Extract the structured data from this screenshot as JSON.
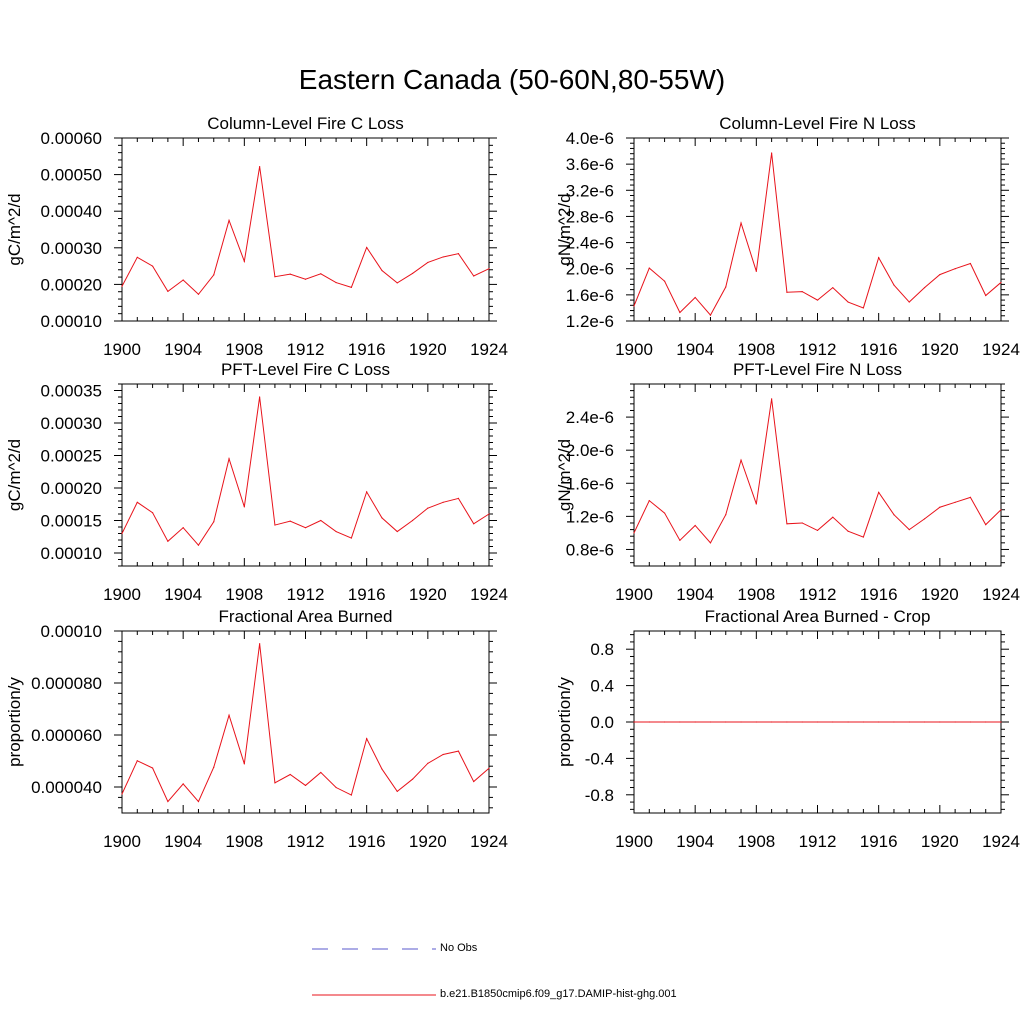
{
  "title": "Eastern Canada (50-60N,80-55W)",
  "line_color": "#e8131b",
  "nobs_color": "#5a5acd",
  "legend": {
    "no_obs": "No Obs",
    "run": "b.e21.B1850cmip6.f09_g17.DAMIP-hist-ghg.001"
  },
  "chart_data": [
    {
      "type": "line",
      "title": "Column-Level Fire C Loss",
      "ylabel": "gC/m^2/d",
      "xlim": [
        1900,
        1924
      ],
      "ylim": [
        0.0001,
        0.0006
      ],
      "xticks": [
        1900,
        1904,
        1908,
        1912,
        1916,
        1920,
        1924
      ],
      "yticks": [
        0.0001,
        0.0002,
        0.0003,
        0.0004,
        0.0005,
        0.0006
      ],
      "ytick_labels": [
        "0.00010",
        "0.00020",
        "0.00030",
        "0.00040",
        "0.00050",
        "0.00060"
      ],
      "x": [
        1900,
        1901,
        1902,
        1903,
        1904,
        1905,
        1906,
        1907,
        1908,
        1909,
        1910,
        1911,
        1912,
        1913,
        1914,
        1915,
        1916,
        1917,
        1918,
        1919,
        1920,
        1921,
        1922,
        1923,
        1924
      ],
      "values": [
        0.000195,
        0.000274,
        0.00025,
        0.000181,
        0.000212,
        0.000173,
        0.000226,
        0.000375,
        0.000263,
        0.000522,
        0.000221,
        0.000228,
        0.000214,
        0.000229,
        0.000205,
        0.000192,
        0.000301,
        0.000238,
        0.000204,
        0.00023,
        0.00026,
        0.000275,
        0.000284,
        0.000223,
        0.000243
      ]
    },
    {
      "type": "line",
      "title": "Column-Level Fire N Loss",
      "ylabel": "gN/m^2/d",
      "xlim": [
        1900,
        1924
      ],
      "ylim": [
        1.2e-06,
        4e-06
      ],
      "xticks": [
        1900,
        1904,
        1908,
        1912,
        1916,
        1920,
        1924
      ],
      "yticks": [
        1.2e-06,
        1.6e-06,
        2e-06,
        2.4e-06,
        2.8e-06,
        3.2e-06,
        3.6e-06,
        4e-06
      ],
      "ytick_labels": [
        "1.2e-6",
        "1.6e-6",
        "2.0e-6",
        "2.4e-6",
        "2.8e-6",
        "3.2e-6",
        "3.6e-6",
        "4.0e-6"
      ],
      "x": [
        1900,
        1901,
        1902,
        1903,
        1904,
        1905,
        1906,
        1907,
        1908,
        1909,
        1910,
        1911,
        1912,
        1913,
        1914,
        1915,
        1916,
        1917,
        1918,
        1919,
        1920,
        1921,
        1922,
        1923,
        1924
      ],
      "values": [
        1.43e-06,
        2.01e-06,
        1.81e-06,
        1.33e-06,
        1.56e-06,
        1.29e-06,
        1.72e-06,
        2.7e-06,
        1.96e-06,
        3.77e-06,
        1.64e-06,
        1.65e-06,
        1.52e-06,
        1.71e-06,
        1.49e-06,
        1.4e-06,
        2.17e-06,
        1.75e-06,
        1.49e-06,
        1.71e-06,
        1.91e-06,
        2e-06,
        2.08e-06,
        1.59e-06,
        1.79e-06
      ]
    },
    {
      "type": "line",
      "title": "PFT-Level Fire C Loss",
      "ylabel": "gC/m^2/d",
      "xlim": [
        1900,
        1924
      ],
      "ylim": [
        8e-05,
        0.00036
      ],
      "xticks": [
        1900,
        1904,
        1908,
        1912,
        1916,
        1920,
        1924
      ],
      "yticks": [
        0.0001,
        0.00015,
        0.0002,
        0.00025,
        0.0003,
        0.00035
      ],
      "ytick_labels": [
        "0.00010",
        "0.00015",
        "0.00020",
        "0.00025",
        "0.00030",
        "0.00035"
      ],
      "x": [
        1900,
        1901,
        1902,
        1903,
        1904,
        1905,
        1906,
        1907,
        1908,
        1909,
        1910,
        1911,
        1912,
        1913,
        1914,
        1915,
        1916,
        1917,
        1918,
        1919,
        1920,
        1921,
        1922,
        1923,
        1924
      ],
      "values": [
        0.00013,
        0.000178,
        0.000162,
        0.000118,
        0.000139,
        0.000112,
        0.000148,
        0.000245,
        0.000171,
        0.00034,
        0.000143,
        0.000149,
        0.000139,
        0.00015,
        0.000133,
        0.000123,
        0.000194,
        0.000154,
        0.000133,
        0.00015,
        0.000169,
        0.000178,
        0.000184,
        0.000145,
        0.00016
      ]
    },
    {
      "type": "line",
      "title": "PFT-Level Fire N Loss",
      "ylabel": "gN/m^2/d",
      "xlim": [
        1900,
        1924
      ],
      "ylim": [
        6e-07,
        2.8e-06
      ],
      "xticks": [
        1900,
        1904,
        1908,
        1912,
        1916,
        1920,
        1924
      ],
      "yticks": [
        8e-07,
        1.2e-06,
        1.6e-06,
        2e-06,
        2.4e-06
      ],
      "ytick_labels": [
        "0.8e-6",
        "1.2e-6",
        "1.6e-6",
        "2.0e-6",
        "2.4e-6"
      ],
      "x": [
        1900,
        1901,
        1902,
        1903,
        1904,
        1905,
        1906,
        1907,
        1908,
        1909,
        1910,
        1911,
        1912,
        1913,
        1914,
        1915,
        1916,
        1917,
        1918,
        1919,
        1920,
        1921,
        1922,
        1923,
        1924
      ],
      "values": [
        1e-06,
        1.39e-06,
        1.24e-06,
        9.1e-07,
        1.09e-06,
        8.8e-07,
        1.22e-06,
        1.88e-06,
        1.35e-06,
        2.62e-06,
        1.11e-06,
        1.12e-06,
        1.03e-06,
        1.19e-06,
        1.02e-06,
        9.5e-07,
        1.49e-06,
        1.22e-06,
        1.04e-06,
        1.17e-06,
        1.31e-06,
        1.37e-06,
        1.43e-06,
        1.1e-06,
        1.28e-06
      ]
    },
    {
      "type": "line",
      "title": "Fractional Area Burned",
      "ylabel": "proportion/y",
      "xlim": [
        1900,
        1924
      ],
      "ylim": [
        3e-05,
        0.0001
      ],
      "xticks": [
        1900,
        1904,
        1908,
        1912,
        1916,
        1920,
        1924
      ],
      "yticks": [
        4e-05,
        6e-05,
        8e-05,
        0.0001
      ],
      "ytick_labels": [
        "0.000040",
        "0.000060",
        "0.000080",
        "0.00010"
      ],
      "x": [
        1900,
        1901,
        1902,
        1903,
        1904,
        1905,
        1906,
        1907,
        1908,
        1909,
        1910,
        1911,
        1912,
        1913,
        1914,
        1915,
        1916,
        1917,
        1918,
        1919,
        1920,
        1921,
        1922,
        1923,
        1924
      ],
      "values": [
        3.73e-05,
        5.01e-05,
        4.73e-05,
        3.44e-05,
        4.12e-05,
        3.44e-05,
        4.76e-05,
        6.76e-05,
        4.89e-05,
        9.51e-05,
        4.16e-05,
        4.48e-05,
        4.06e-05,
        4.56e-05,
        3.98e-05,
        3.69e-05,
        5.86e-05,
        4.69e-05,
        3.83e-05,
        4.3e-05,
        4.91e-05,
        5.25e-05,
        5.38e-05,
        4.21e-05,
        4.72e-05
      ]
    },
    {
      "type": "line",
      "title": "Fractional Area Burned - Crop",
      "ylabel": "proportion/y",
      "xlim": [
        1900,
        1924
      ],
      "ylim": [
        -1.0,
        1.0
      ],
      "xticks": [
        1900,
        1904,
        1908,
        1912,
        1916,
        1920,
        1924
      ],
      "yticks": [
        -0.8,
        -0.4,
        0.0,
        0.4,
        0.8
      ],
      "ytick_labels": [
        "-0.8",
        "-0.4",
        "0.0",
        "0.4",
        "0.8"
      ],
      "x": [
        1900,
        1901,
        1902,
        1903,
        1904,
        1905,
        1906,
        1907,
        1908,
        1909,
        1910,
        1911,
        1912,
        1913,
        1914,
        1915,
        1916,
        1917,
        1918,
        1919,
        1920,
        1921,
        1922,
        1923,
        1924
      ],
      "values": [
        0,
        0,
        0,
        0,
        0,
        0,
        0,
        0,
        0,
        0,
        0,
        0,
        0,
        0,
        0,
        0,
        0,
        0,
        0,
        0,
        0,
        0,
        0,
        0,
        0
      ]
    }
  ]
}
